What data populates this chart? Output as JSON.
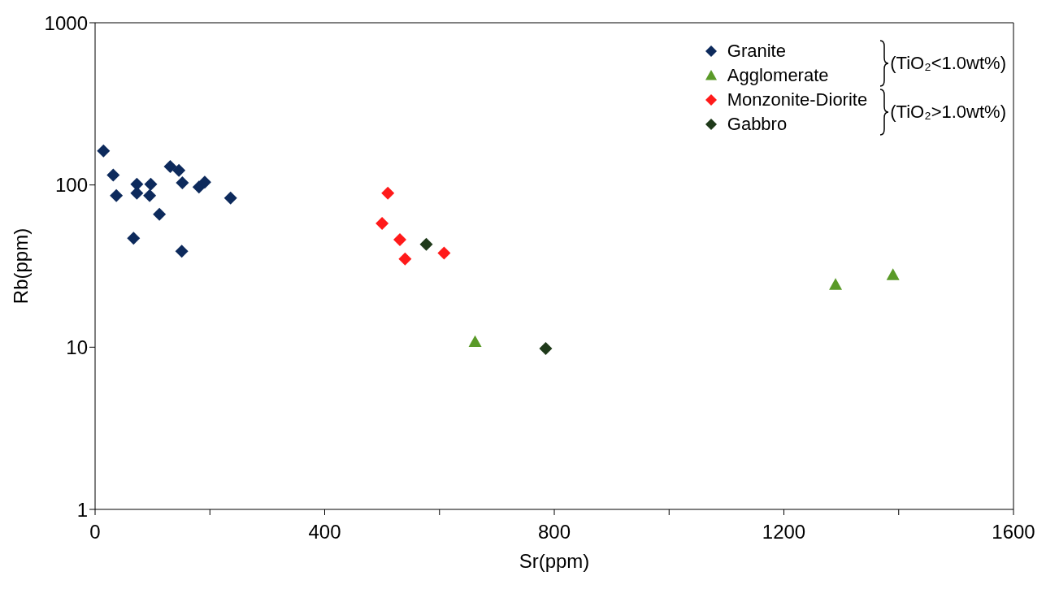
{
  "chart_data": {
    "type": "scatter",
    "xlabel": "Sr(ppm)",
    "ylabel": "Rb(ppm)",
    "log": "y",
    "legend": "top right",
    "xlim": [
      0,
      1600
    ],
    "xticks": [
      0,
      {
        "value": 200,
        "label": null
      },
      400,
      {
        "value": 600,
        "label": null
      },
      800,
      {
        "value": 1000,
        "label": null
      },
      1200,
      {
        "value": 1400,
        "label": null
      },
      1600
    ],
    "ylim": [
      1,
      1000
    ],
    "yticks": [
      1,
      10,
      100,
      1000
    ],
    "annotations": [
      "(TiO₂<1.0wt%)",
      "(TiO₂>1.0wt%)"
    ],
    "series": [
      {
        "name": "Granite",
        "color": "#0d2a5c",
        "marker": "diamond",
        "x": [
          14.6,
          31.6,
          37,
          72.7,
          72.7,
          97,
          95,
          112,
          67,
          131,
          146,
          152,
          181,
          191,
          236,
          151
        ],
        "values": [
          162,
          115,
          86,
          101,
          89,
          101,
          86,
          66,
          47,
          130,
          123,
          103,
          97,
          104,
          83,
          39
        ]
      },
      {
        "name": "Agglomerate",
        "color": "#5a9a28",
        "marker": "triangle",
        "x": [
          662,
          1290,
          1390
        ],
        "values": [
          10.8,
          24.3,
          27.9
        ]
      },
      {
        "name": "Monzonite-Diorite",
        "color": "#ff1a1a",
        "marker": "diamond",
        "x": [
          510,
          500,
          531,
          540,
          608
        ],
        "values": [
          89,
          58,
          46,
          35,
          38
        ]
      },
      {
        "name": "Gabbro",
        "color": "#1f3a1a",
        "marker": "diamond",
        "x": [
          577,
          785
        ],
        "values": [
          43,
          9.8
        ]
      }
    ]
  }
}
